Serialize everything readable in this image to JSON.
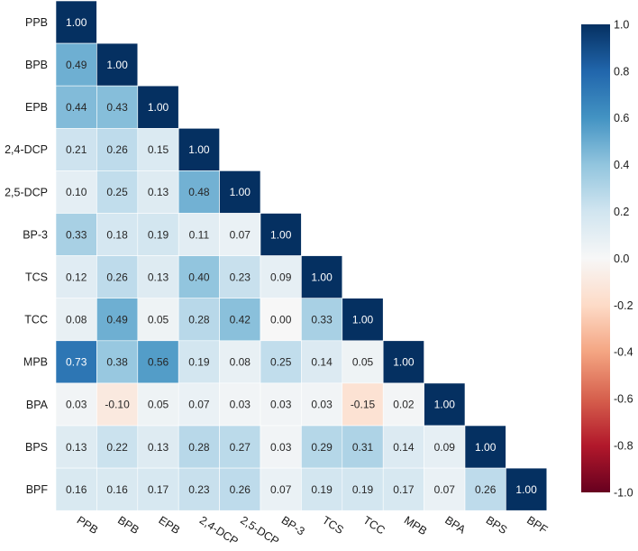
{
  "chart_data": {
    "type": "heatmap",
    "variables": [
      "PPB",
      "BPB",
      "EPB",
      "2,4-DCP",
      "2,5-DCP",
      "BP-3",
      "TCS",
      "TCC",
      "MPB",
      "BPA",
      "BPS",
      "BPF"
    ],
    "values": [
      [
        1.0
      ],
      [
        0.49,
        1.0
      ],
      [
        0.44,
        0.43,
        1.0
      ],
      [
        0.21,
        0.26,
        0.15,
        1.0
      ],
      [
        0.1,
        0.25,
        0.13,
        0.48,
        1.0
      ],
      [
        0.33,
        0.18,
        0.19,
        0.11,
        0.07,
        1.0
      ],
      [
        0.12,
        0.26,
        0.13,
        0.4,
        0.23,
        0.09,
        1.0
      ],
      [
        0.08,
        0.49,
        0.05,
        0.28,
        0.42,
        0.0,
        0.33,
        1.0
      ],
      [
        0.73,
        0.38,
        0.56,
        0.19,
        0.08,
        0.25,
        0.14,
        0.05,
        1.0
      ],
      [
        0.03,
        -0.1,
        0.05,
        0.07,
        0.03,
        0.03,
        0.03,
        -0.15,
        0.02,
        1.0
      ],
      [
        0.13,
        0.22,
        0.13,
        0.28,
        0.27,
        0.03,
        0.29,
        0.31,
        0.14,
        0.09,
        1.0
      ],
      [
        0.16,
        0.16,
        0.17,
        0.23,
        0.26,
        0.07,
        0.19,
        0.19,
        0.17,
        0.07,
        0.26,
        1.0
      ]
    ],
    "vmin": -1.0,
    "vmax": 1.0,
    "colorbar_ticks": [
      1.0,
      0.8,
      0.6,
      0.4,
      0.2,
      0.0,
      -0.2,
      -0.4,
      -0.6,
      -0.8,
      -1.0
    ],
    "colormap_colors": [
      "#67001f",
      "#b2182b",
      "#d6604d",
      "#f4a582",
      "#fddbc7",
      "#f7f7f7",
      "#d1e5f0",
      "#92c5de",
      "#4393c3",
      "#2166ac",
      "#053061"
    ],
    "annotation_colors": {
      "dark": "#262626",
      "light": "#ffffff"
    },
    "grid": false,
    "colorbar_position": "right"
  }
}
